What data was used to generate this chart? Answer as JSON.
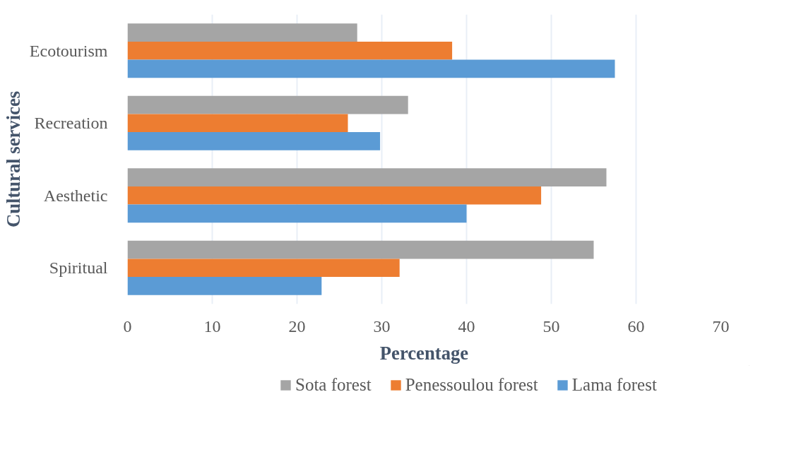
{
  "chart_data": {
    "type": "bar",
    "orientation": "horizontal",
    "xlabel": "Percentage",
    "ylabel": "Cultural services",
    "categories": [
      "Ecotourism",
      "Recreation",
      "Aesthetic",
      "Spiritual"
    ],
    "series": [
      {
        "name": "Sota forest",
        "color": "#a5a5a5",
        "values": [
          27.1,
          33.1,
          56.5,
          55.0
        ]
      },
      {
        "name": "Penessoulou forest",
        "color": "#ed7d31",
        "values": [
          38.3,
          26.0,
          48.8,
          32.1
        ]
      },
      {
        "name": "Lama forest",
        "color": "#5b9bd5",
        "values": [
          57.5,
          29.8,
          40.0,
          22.9
        ]
      }
    ],
    "xlim": [
      0,
      70
    ],
    "xticks": [
      0,
      10,
      20,
      30,
      40,
      50,
      60,
      70
    ],
    "grid": "x",
    "legend": "bottom"
  }
}
